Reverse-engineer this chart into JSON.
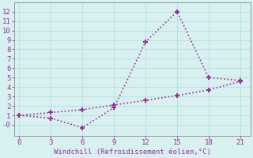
{
  "line1_x": [
    0,
    3,
    6,
    9,
    12,
    15,
    18,
    21
  ],
  "line1_y": [
    1.0,
    0.7,
    -0.3,
    1.8,
    8.8,
    12.0,
    5.0,
    4.7
  ],
  "line2_x": [
    0,
    3,
    6,
    9,
    12,
    15,
    18,
    21
  ],
  "line2_y": [
    1.0,
    1.3,
    1.6,
    2.1,
    2.6,
    3.1,
    3.7,
    4.6
  ],
  "line_color": "#993399",
  "bg_color": "#d8f0f0",
  "grid_color": "#b8e0e0",
  "xlabel": "Windchill (Refroidissement éolien,°C)",
  "xlabel_color": "#993399",
  "tick_color": "#993399",
  "xlim": [
    -0.5,
    22
  ],
  "ylim": [
    -1.2,
    13
  ],
  "xticks": [
    0,
    3,
    6,
    9,
    12,
    15,
    18,
    21
  ],
  "yticks": [
    0,
    1,
    2,
    3,
    4,
    5,
    6,
    7,
    8,
    9,
    10,
    11,
    12
  ],
  "ytick_labels": [
    "-0",
    "1",
    "2",
    "3",
    "4",
    "5",
    "6",
    "7",
    "8",
    "9",
    "10",
    "11",
    "12"
  ]
}
